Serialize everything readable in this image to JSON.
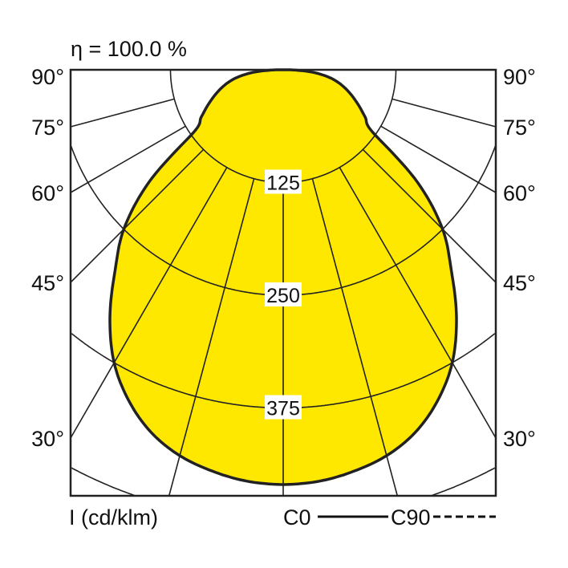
{
  "chart_data": {
    "type": "polar",
    "title": "η = 100.0 %",
    "unit_label": "I (cd/klm)",
    "radial_ticks": [
      125,
      250,
      375,
      500
    ],
    "radial_tick_labels": [
      "125",
      "250",
      "375"
    ],
    "angle_labels_left": [
      "90°",
      "75°",
      "60°",
      "45°",
      "30°"
    ],
    "angle_labels_right": [
      "90°",
      "75°",
      "60°",
      "45°",
      "30°"
    ],
    "angle_ticks_deg": [
      90,
      75,
      60,
      45,
      30
    ],
    "legend": [
      {
        "name": "C0",
        "style": "solid"
      },
      {
        "name": "C90",
        "style": "dashed"
      }
    ],
    "series": [
      {
        "name": "C0",
        "angles_deg": [
          0,
          5,
          10,
          15,
          20,
          25,
          30,
          35,
          40,
          45,
          50,
          55,
          60,
          65,
          70,
          75,
          80,
          85,
          90
        ],
        "values": [
          460,
          458,
          452,
          443,
          428,
          405,
          375,
          335,
          290,
          250,
          195,
          122,
          105,
          92,
          80,
          68,
          54,
          34,
          8
        ]
      }
    ],
    "fill_color": "#FFE800",
    "line_color": "#222222",
    "grid": true
  }
}
